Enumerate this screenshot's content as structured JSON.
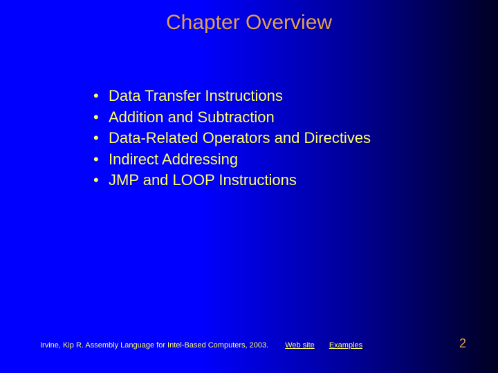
{
  "title": "Chapter Overview",
  "title_color": "#e0a050",
  "body_color": "#ffff66",
  "link_color": "#ffff66",
  "pagenum_color": "#e0a050",
  "bullets": [
    "Data Transfer Instructions",
    "Addition and Subtraction",
    "Data-Related Operators and Directives",
    "Indirect Addressing",
    "JMP and LOOP Instructions"
  ],
  "footer": {
    "citation": "Irvine, Kip R. Assembly Language for Intel-Based Computers, 2003.",
    "links": [
      "Web site",
      "Examples"
    ],
    "page_number": "2"
  },
  "background_gradient": {
    "from": "#0000ff",
    "to": "#000022"
  }
}
